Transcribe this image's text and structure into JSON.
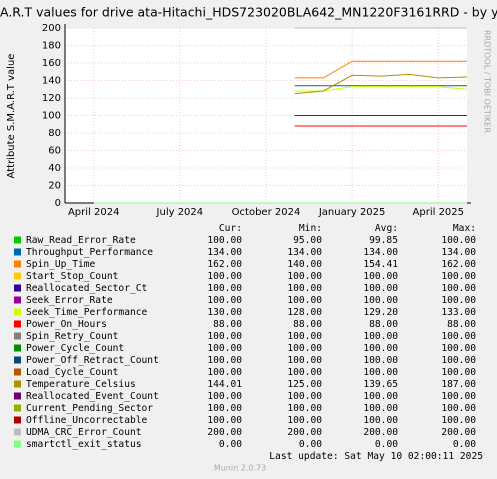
{
  "chart_data": {
    "type": "line",
    "title": "A.R.T values for drive ata-Hitachi_HDS723020BLA642_MN1220F3161RRD - by y",
    "y_label": "Attribute S.M.A.R.T value",
    "credit": "RRDTOOL / TOBI OETIKER",
    "footer": "Munin 2.0.73",
    "last_update": "Last update: Sat May 10 02:00:11 2025",
    "stat_columns": [
      "Cur:",
      "Min:",
      "Avg:",
      "Max:"
    ],
    "grid": true,
    "ylim": [
      0,
      200
    ],
    "yticks": [
      0,
      20,
      40,
      60,
      80,
      100,
      120,
      140,
      160,
      180,
      200
    ],
    "xlim": [
      "2024-03",
      "2025-05"
    ],
    "xticks": [
      {
        "value": "2024-04",
        "label": "April 2024"
      },
      {
        "value": "2024-07",
        "label": "July 2024"
      },
      {
        "value": "2024-10",
        "label": "October 2024"
      },
      {
        "value": "2025-01",
        "label": "January 2025"
      },
      {
        "value": "2025-04",
        "label": "April 2025"
      }
    ],
    "x": [
      "2024-04",
      "2024-05",
      "2024-06",
      "2024-07",
      "2024-08",
      "2024-09",
      "2024-10",
      "2024-11",
      "2024-12",
      "2025-01",
      "2025-02",
      "2025-03",
      "2025-04",
      "2025-05"
    ],
    "series": [
      {
        "name": "Raw_Read_Error_Rate",
        "color": "#00cc00",
        "values": [
          null,
          null,
          null,
          null,
          null,
          null,
          null,
          100,
          100,
          100,
          100,
          100,
          100,
          100
        ],
        "stats": [
          "100.00",
          "95.00",
          "99.85",
          "100.00"
        ]
      },
      {
        "name": "Throughput_Performance",
        "color": "#0066b3",
        "values": [
          null,
          null,
          null,
          null,
          null,
          null,
          null,
          134,
          134,
          134,
          134,
          134,
          134,
          134
        ],
        "stats": [
          "134.00",
          "134.00",
          "134.00",
          "134.00"
        ]
      },
      {
        "name": "Spin_Up_Time",
        "color": "#ff8000",
        "values": [
          null,
          null,
          null,
          null,
          null,
          null,
          null,
          143,
          143,
          162,
          162,
          162,
          162,
          162
        ],
        "stats": [
          "162.00",
          "140.00",
          "154.41",
          "162.00"
        ]
      },
      {
        "name": "Start_Stop_Count",
        "color": "#ffcc00",
        "values": [
          null,
          null,
          null,
          null,
          null,
          null,
          null,
          100,
          100,
          100,
          100,
          100,
          100,
          100
        ],
        "stats": [
          "100.00",
          "100.00",
          "100.00",
          "100.00"
        ]
      },
      {
        "name": "Reallocated_Sector_Ct",
        "color": "#330099",
        "values": [
          null,
          null,
          null,
          null,
          null,
          null,
          null,
          100,
          100,
          100,
          100,
          100,
          100,
          100
        ],
        "stats": [
          "100.00",
          "100.00",
          "100.00",
          "100.00"
        ]
      },
      {
        "name": "Seek_Error_Rate",
        "color": "#990099",
        "values": [
          null,
          null,
          null,
          null,
          null,
          null,
          null,
          100,
          100,
          100,
          100,
          100,
          100,
          100
        ],
        "stats": [
          "100.00",
          "100.00",
          "100.00",
          "100.00"
        ]
      },
      {
        "name": "Seek_Time_Performance",
        "color": "#ccff00",
        "values": [
          null,
          null,
          null,
          null,
          null,
          null,
          null,
          128,
          128,
          133,
          133,
          133,
          133,
          130
        ],
        "stats": [
          "130.00",
          "128.00",
          "129.20",
          "133.00"
        ]
      },
      {
        "name": "Power_On_Hours",
        "color": "#ff0000",
        "values": [
          null,
          null,
          null,
          null,
          null,
          null,
          null,
          88,
          88,
          88,
          88,
          88,
          88,
          88
        ],
        "stats": [
          "88.00",
          "88.00",
          "88.00",
          "88.00"
        ]
      },
      {
        "name": "Spin_Retry_Count",
        "color": "#808080",
        "values": [
          null,
          null,
          null,
          null,
          null,
          null,
          null,
          100,
          100,
          100,
          100,
          100,
          100,
          100
        ],
        "stats": [
          "100.00",
          "100.00",
          "100.00",
          "100.00"
        ]
      },
      {
        "name": "Power_Cycle_Count",
        "color": "#008f00",
        "values": [
          null,
          null,
          null,
          null,
          null,
          null,
          null,
          100,
          100,
          100,
          100,
          100,
          100,
          100
        ],
        "stats": [
          "100.00",
          "100.00",
          "100.00",
          "100.00"
        ]
      },
      {
        "name": "Power_Off_Retract_Count",
        "color": "#00487d",
        "values": [
          null,
          null,
          null,
          null,
          null,
          null,
          null,
          100,
          100,
          100,
          100,
          100,
          100,
          100
        ],
        "stats": [
          "100.00",
          "100.00",
          "100.00",
          "100.00"
        ]
      },
      {
        "name": "Load_Cycle_Count",
        "color": "#b35a00",
        "values": [
          null,
          null,
          null,
          null,
          null,
          null,
          null,
          100,
          100,
          100,
          100,
          100,
          100,
          100
        ],
        "stats": [
          "100.00",
          "100.00",
          "100.00",
          "100.00"
        ]
      },
      {
        "name": "Temperature_Celsius",
        "color": "#b38f00",
        "values": [
          null,
          null,
          null,
          null,
          null,
          null,
          null,
          125,
          128,
          146,
          145,
          147,
          143,
          144
        ],
        "stats": [
          "144.01",
          "125.00",
          "139.65",
          "187.00"
        ]
      },
      {
        "name": "Reallocated_Event_Count",
        "color": "#6b006b",
        "values": [
          null,
          null,
          null,
          null,
          null,
          null,
          null,
          100,
          100,
          100,
          100,
          100,
          100,
          100
        ],
        "stats": [
          "100.00",
          "100.00",
          "100.00",
          "100.00"
        ]
      },
      {
        "name": "Current_Pending_Sector",
        "color": "#8fb300",
        "values": [
          null,
          null,
          null,
          null,
          null,
          null,
          null,
          100,
          100,
          100,
          100,
          100,
          100,
          100
        ],
        "stats": [
          "100.00",
          "100.00",
          "100.00",
          "100.00"
        ]
      },
      {
        "name": "Offline_Uncorrectable",
        "color": "#b30000",
        "values": [
          null,
          null,
          null,
          null,
          null,
          null,
          null,
          100,
          100,
          100,
          100,
          100,
          100,
          100
        ],
        "stats": [
          "100.00",
          "100.00",
          "100.00",
          "100.00"
        ]
      },
      {
        "name": "UDMA_CRC_Error_Count",
        "color": "#bebebe",
        "values": [
          null,
          null,
          null,
          null,
          null,
          null,
          null,
          200,
          200,
          200,
          200,
          200,
          200,
          200
        ],
        "stats": [
          "200.00",
          "200.00",
          "200.00",
          "200.00"
        ]
      },
      {
        "name": "smartctl_exit_status",
        "color": "#80ff80",
        "values": [
          0,
          0,
          0,
          0,
          0,
          0,
          0,
          0,
          0,
          0,
          0,
          0,
          0,
          0
        ],
        "stats": [
          "0.00",
          "0.00",
          "0.00",
          "0.00"
        ]
      }
    ]
  }
}
